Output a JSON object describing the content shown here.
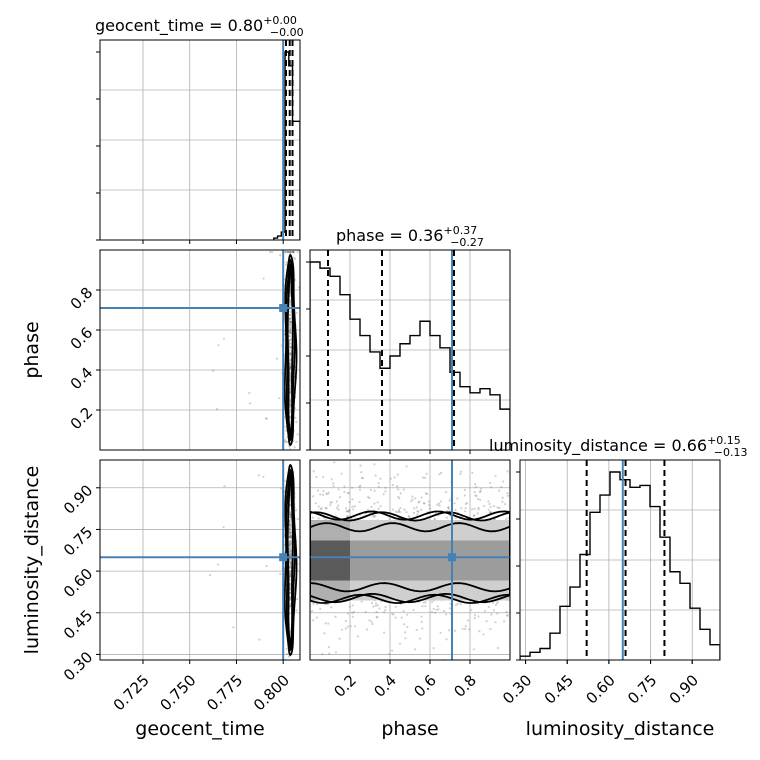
{
  "chart_data": {
    "type": "corner",
    "parameters": [
      "geocent_time",
      "phase",
      "luminosity_distance"
    ],
    "ranges": {
      "geocent_time": [
        0.702,
        0.809
      ],
      "phase": [
        0.0,
        1.0
      ],
      "luminosity_distance": [
        0.28,
        1.0
      ]
    },
    "ticks": {
      "geocent_time": [
        0.725,
        0.75,
        0.775,
        0.8
      ],
      "phase": [
        0.2,
        0.4,
        0.6,
        0.8
      ],
      "luminosity_distance": [
        0.3,
        0.45,
        0.6,
        0.75,
        0.9
      ]
    },
    "tick_labels": {
      "geocent_time": [
        "0.725",
        "0.750",
        "0.775",
        "0.800"
      ],
      "phase_x": [
        "0.2",
        "0.4",
        "0.6",
        "0.8"
      ],
      "phase_y": [
        "0.2",
        "0.4",
        "0.6",
        "0.8"
      ],
      "luminosity_distance_x": [
        "0.30",
        "0.45",
        "0.60",
        "0.75",
        "0.90"
      ],
      "luminosity_distance_y": [
        "0.30",
        "0.45",
        "0.60",
        "0.75",
        "0.90"
      ]
    },
    "truths": {
      "geocent_time": 0.8,
      "phase": 0.71,
      "luminosity_distance": 0.65
    },
    "titles": [
      {
        "param": "geocent_time",
        "text": "geocent_time = 0.80",
        "plus": "+0.00",
        "minus": "−0.00"
      },
      {
        "param": "phase",
        "text": "phase = 0.36",
        "plus": "+0.37",
        "minus": "−0.27"
      },
      {
        "param": "luminosity_distance",
        "text": "luminosity_distance = 0.66",
        "plus": "+0.15",
        "minus": "−0.13"
      }
    ],
    "quantiles": {
      "geocent_time": [
        0.8015,
        0.8035,
        0.805
      ],
      "phase": [
        0.09,
        0.36,
        0.72
      ],
      "luminosity_distance": [
        0.52,
        0.66,
        0.8
      ]
    },
    "histograms": {
      "geocent_time": {
        "edges": [
          0.795,
          0.797,
          0.799,
          0.801,
          0.803,
          0.805,
          0.807,
          0.809
        ],
        "counts": [
          0.01,
          0.02,
          0.04,
          0.95,
          0.88,
          0.6,
          0.6
        ]
      },
      "phase": {
        "edges": [
          0.0,
          0.05,
          0.1,
          0.15,
          0.2,
          0.25,
          0.3,
          0.35,
          0.4,
          0.45,
          0.5,
          0.55,
          0.6,
          0.65,
          0.7,
          0.75,
          0.8,
          0.85,
          0.9,
          0.95,
          1.0
        ],
        "counts": [
          0.92,
          0.89,
          0.85,
          0.76,
          0.64,
          0.56,
          0.48,
          0.4,
          0.46,
          0.52,
          0.56,
          0.63,
          0.56,
          0.5,
          0.38,
          0.31,
          0.28,
          0.3,
          0.27,
          0.2
        ]
      },
      "luminosity_distance": {
        "edges": [
          0.28,
          0.316,
          0.352,
          0.388,
          0.424,
          0.46,
          0.496,
          0.532,
          0.568,
          0.604,
          0.64,
          0.676,
          0.712,
          0.748,
          0.784,
          0.82,
          0.856,
          0.892,
          0.928,
          0.964,
          1.0
        ],
        "counts": [
          0.02,
          0.04,
          0.06,
          0.14,
          0.28,
          0.38,
          0.55,
          0.77,
          0.86,
          0.98,
          0.94,
          0.9,
          0.91,
          0.8,
          0.64,
          0.46,
          0.4,
          0.27,
          0.16,
          0.08
        ]
      }
    },
    "axis_labels": {
      "x": [
        "geocent_time",
        "phase",
        "luminosity_distance"
      ],
      "y": [
        "phase",
        "luminosity_distance"
      ]
    },
    "grid": true,
    "colors": {
      "truth": "#4682b4",
      "histogram": "#000000",
      "contour": "#000000",
      "samples": "#777777",
      "grid": "#b0b0b0"
    }
  }
}
